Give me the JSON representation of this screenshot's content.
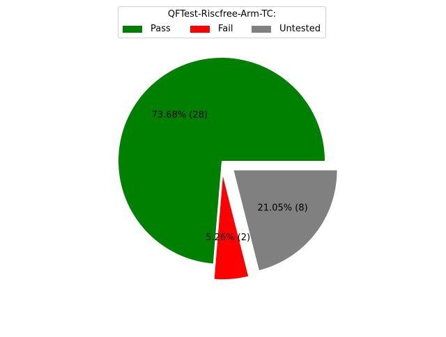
{
  "chart_data": {
    "type": "pie",
    "title": "",
    "legend": {
      "title": "QFTest-Riscfree-Arm-TC:",
      "placement": "top-center",
      "entries": [
        {
          "label": "Pass",
          "color": "#008000"
        },
        {
          "label": "Fail",
          "color": "#ff0000"
        },
        {
          "label": "Untested",
          "color": "#808080"
        }
      ]
    },
    "slices": [
      {
        "label": "Pass",
        "count": 28,
        "percent": 73.68,
        "color": "#008000",
        "exploded": false,
        "autopct": "73.68%  (28)"
      },
      {
        "label": "Fail",
        "count": 2,
        "percent": 5.26,
        "color": "#ff0000",
        "exploded": true,
        "autopct": "5.26%  (2)"
      },
      {
        "label": "Untested",
        "count": 8,
        "percent": 21.05,
        "color": "#808080",
        "exploded": true,
        "autopct": "21.05%  (8)"
      }
    ]
  }
}
